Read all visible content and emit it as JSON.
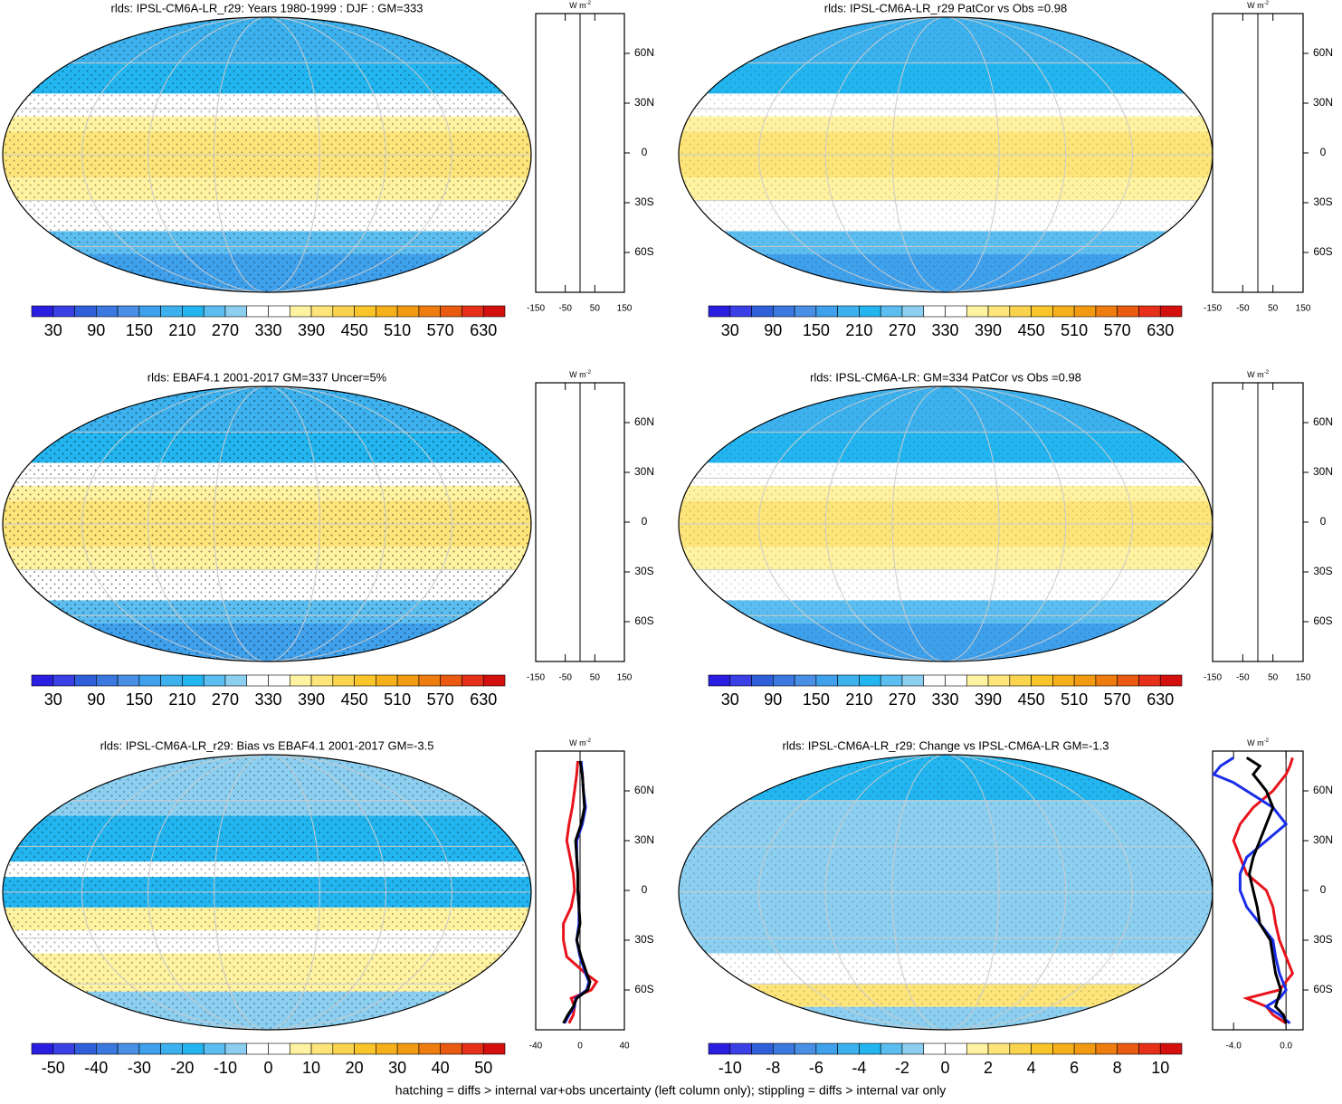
{
  "palette": [
    "#2a1fe0",
    "#3a3fe6",
    "#2f5fd9",
    "#3b78e0",
    "#4a8fe6",
    "#3fa0ec",
    "#3cb1ee",
    "#22b5f0",
    "#5cbef0",
    "#8ccff0",
    "#ffffff",
    "#ffffff",
    "#fff2a0",
    "#fde57a",
    "#fbd44f",
    "#f9c52b",
    "#f6b01b",
    "#f29b12",
    "#ee7c0e",
    "#ea5a10",
    "#e6301a",
    "#d4100f"
  ],
  "panels": [
    {
      "title": "rlds: IPSL-CM6A-LR_r29: Years 1980-1999 : DJF : GM=333",
      "colorbar": {
        "lim": [
          0,
          660
        ],
        "ticks": [
          30,
          90,
          150,
          210,
          270,
          330,
          390,
          450,
          510,
          570,
          630
        ]
      },
      "zonal": {
        "unit": "W m",
        "unit_exponent": "-2",
        "xlim": [
          -150,
          150
        ],
        "xticks": [
          -150,
          -50,
          50,
          150
        ],
        "ylim": [
          -84,
          84
        ],
        "yticks": [
          {
            "value": 60,
            "label": "60N"
          },
          {
            "value": 30,
            "label": "30N"
          },
          0,
          {
            "value": -30,
            "label": "30S"
          },
          {
            "value": -60,
            "label": "60S"
          }
        ]
      }
    },
    {
      "title": "rlds: IPSL-CM6A-LR_r29 PatCor vs Obs =0.98",
      "colorbar": {
        "lim": [
          0,
          660
        ],
        "ticks": [
          30,
          90,
          150,
          210,
          270,
          330,
          390,
          450,
          510,
          570,
          630
        ]
      },
      "zonal": {
        "unit": "W m",
        "unit_exponent": "-2",
        "xlim": [
          -150,
          150
        ],
        "xticks": [
          -150,
          -50,
          50,
          150
        ],
        "ylim": [
          -84,
          84
        ],
        "yticks": [
          {
            "value": 60,
            "label": "60N"
          },
          {
            "value": 30,
            "label": "30N"
          },
          0,
          {
            "value": -30,
            "label": "30S"
          },
          {
            "value": -60,
            "label": "60S"
          }
        ]
      }
    },
    {
      "title": "rlds: EBAF4.1 2001-2017 GM=337 Uncer=5%",
      "colorbar": {
        "lim": [
          0,
          660
        ],
        "ticks": [
          30,
          90,
          150,
          210,
          270,
          330,
          390,
          450,
          510,
          570,
          630
        ]
      },
      "zonal": {
        "unit": "W m",
        "unit_exponent": "-2",
        "xlim": [
          -150,
          150
        ],
        "xticks": [
          -150,
          -50,
          50,
          150
        ],
        "ylim": [
          -84,
          84
        ],
        "yticks": [
          {
            "value": 60,
            "label": "60N"
          },
          {
            "value": 30,
            "label": "30N"
          },
          0,
          {
            "value": -30,
            "label": "30S"
          },
          {
            "value": -60,
            "label": "60S"
          }
        ]
      }
    },
    {
      "title": "rlds: IPSL-CM6A-LR: GM=334 PatCor vs Obs =0.98",
      "colorbar": {
        "lim": [
          0,
          660
        ],
        "ticks": [
          30,
          90,
          150,
          210,
          270,
          330,
          390,
          450,
          510,
          570,
          630
        ]
      },
      "zonal": {
        "unit": "W m",
        "unit_exponent": "-2",
        "xlim": [
          -150,
          150
        ],
        "xticks": [
          -150,
          -50,
          50,
          150
        ],
        "ylim": [
          -84,
          84
        ],
        "yticks": [
          {
            "value": 60,
            "label": "60N"
          },
          {
            "value": 30,
            "label": "30N"
          },
          0,
          {
            "value": -30,
            "label": "30S"
          },
          {
            "value": -60,
            "label": "60S"
          }
        ]
      }
    },
    {
      "title": "rlds: IPSL-CM6A-LR_r29: Bias vs EBAF4.1 2001-2017 GM=-3.5",
      "colorbar": {
        "lim": [
          -55,
          55
        ],
        "ticks": [
          -50,
          -40,
          -30,
          -20,
          -10,
          0,
          10,
          20,
          30,
          40,
          50
        ]
      },
      "zonal": {
        "unit": "W m",
        "unit_exponent": "-2",
        "xlim": [
          -40,
          40
        ],
        "xticks": [
          -40,
          0,
          40
        ],
        "ylim": [
          -84,
          84
        ],
        "yticks": [
          {
            "value": 60,
            "label": "60N"
          },
          {
            "value": 30,
            "label": "30N"
          },
          0,
          {
            "value": -30,
            "label": "30S"
          },
          {
            "value": -60,
            "label": "60S"
          }
        ],
        "lat": [
          78,
          70,
          60,
          50,
          40,
          30,
          20,
          10,
          0,
          -10,
          -20,
          -30,
          -40,
          -50,
          -55,
          -60,
          -65,
          -70,
          -75,
          -80
        ],
        "series": [
          {
            "color": "#e8141c",
            "values": [
              -2,
              -3,
              -5,
              -7,
              -10,
              -12,
              -9,
              -6,
              -5,
              -8,
              -15,
              -15,
              -12,
              5,
              15,
              10,
              -8,
              -5,
              -6,
              -10
            ]
          },
          {
            "color": "#1a2ee8",
            "values": [
              1,
              2,
              3,
              5,
              2,
              -3,
              -3,
              -2,
              -2,
              -1,
              -1,
              -3,
              0,
              5,
              8,
              6,
              -4,
              -5,
              -10,
              -14
            ]
          },
          {
            "color": "#000000",
            "values": [
              0,
              2,
              3,
              4,
              1,
              -4,
              -3,
              -2,
              -2,
              -1,
              0,
              -3,
              1,
              6,
              9,
              7,
              -3,
              -6,
              -11,
              -15
            ]
          }
        ]
      }
    },
    {
      "title": "rlds: IPSL-CM6A-LR_r29: Change vs IPSL-CM6A-LR GM=-1.3",
      "colorbar": {
        "lim": [
          -11,
          11
        ],
        "ticks": [
          -10,
          -8,
          -6,
          -4,
          -2,
          0,
          2,
          4,
          6,
          8,
          10
        ]
      },
      "zonal": {
        "unit": "W m",
        "unit_exponent": "-2",
        "xlim": [
          -5.6,
          1.3
        ],
        "xticks": [
          {
            "value": -4,
            "label": "-4.0"
          },
          {
            "value": 0,
            "label": "0.0"
          }
        ],
        "ylim": [
          -84,
          84
        ],
        "yticks": [
          {
            "value": 60,
            "label": "60N"
          },
          {
            "value": 30,
            "label": "30N"
          },
          0,
          {
            "value": -30,
            "label": "30S"
          },
          {
            "value": -60,
            "label": "60S"
          }
        ],
        "lat": [
          80,
          75,
          70,
          65,
          60,
          50,
          40,
          30,
          20,
          10,
          0,
          -10,
          -20,
          -30,
          -40,
          -50,
          -60,
          -65,
          -70,
          -75,
          -80
        ],
        "series": [
          {
            "color": "#e8141c",
            "values": [
              0.5,
              0.3,
              0,
              -0.5,
              -1,
              -2.5,
              -3.5,
              -4,
              -3.5,
              -3,
              -1.5,
              -1,
              -0.8,
              -0.5,
              0,
              0.5,
              -0.5,
              -3,
              -1.5,
              -1,
              0
            ]
          },
          {
            "color": "#1a2ee8",
            "values": [
              -4,
              -5,
              -5.5,
              -4,
              -3,
              -1,
              0,
              -1.5,
              -3,
              -3.5,
              -3.5,
              -3,
              -2,
              -1,
              -0.8,
              -0.5,
              0,
              -0.5,
              -1.5,
              -0.5,
              0.3
            ]
          },
          {
            "color": "#000000",
            "values": [
              -3,
              -2,
              -2.5,
              -2,
              -1.5,
              -1,
              -1.5,
              -2,
              -2.5,
              -2.8,
              -2.5,
              -2.2,
              -2,
              -1.2,
              -1,
              -0.8,
              -0.4,
              -0.6,
              -0.8,
              -0.2,
              0
            ]
          }
        ]
      }
    }
  ],
  "footer": "hatching = diffs > internal var+obs uncertainty (left column only); stippling = diffs > internal var only"
}
